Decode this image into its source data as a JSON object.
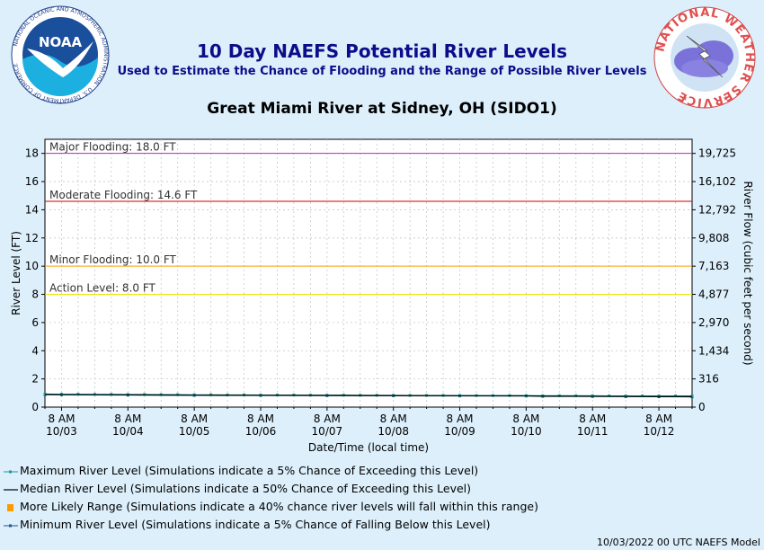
{
  "header": {
    "title": "10 Day NAEFS Potential River Levels",
    "subtitle": "Used to Estimate the Chance of Flooding and the Range of Possible River Levels",
    "station": "Great Miami River at Sidney, OH (SIDO1)"
  },
  "logos": {
    "noaa_text": "NOAA",
    "noaa_ring_text": "NATIONAL OCEANIC AND ATMOSPHERIC ADMINISTRATION · U.S. DEPARTMENT OF COMMERCE",
    "nws_ring_text": "NATIONAL WEATHER SERVICE"
  },
  "colors": {
    "background": "#dceffb",
    "title": "#0b0d8a",
    "major": "#b030b0",
    "moderate": "#cc0000",
    "minor": "#ff9900",
    "action": "#e6e600",
    "max_series": "#1a9a9a",
    "median_series": "#000000",
    "likely_range": "#ff9900",
    "min_series": "#1a5a8a"
  },
  "legend": [
    {
      "key": "max",
      "label": "Maximum River Level (Simulations indicate a 5% Chance of Exceeding this Level)"
    },
    {
      "key": "median",
      "label": "Median River Level (Simulations indicate a 50% Chance of Exceeding this Level)"
    },
    {
      "key": "likely",
      "label": "More Likely Range (Simulations indicate a 40% chance river levels will fall within this range)"
    },
    {
      "key": "min",
      "label": "Minimum River Level (Simulations indicate a 5% Chance of Falling Below this Level)"
    }
  ],
  "footer": "10/03/2022 00 UTC NAEFS Model",
  "chart_data": {
    "type": "line",
    "xlabel": "Date/Time (local time)",
    "ylabel": "River Level (FT)",
    "y2label": "River Flow (cubic feet per second)",
    "ylim": [
      0,
      19
    ],
    "yticks": [
      0,
      2,
      4,
      6,
      8,
      10,
      12,
      14,
      16,
      18
    ],
    "y2ticks": [
      {
        "stage": 0,
        "label": "0"
      },
      {
        "stage": 2,
        "label": "316"
      },
      {
        "stage": 4,
        "label": "1,434"
      },
      {
        "stage": 6,
        "label": "2,970"
      },
      {
        "stage": 8,
        "label": "4,877"
      },
      {
        "stage": 10,
        "label": "7,163"
      },
      {
        "stage": 12,
        "label": "9,808"
      },
      {
        "stage": 14,
        "label": "12,792"
      },
      {
        "stage": 16,
        "label": "16,102"
      },
      {
        "stage": 18,
        "label": "19,725"
      }
    ],
    "xticks": [
      {
        "time": "8 AM",
        "date": "10/03"
      },
      {
        "time": "8 AM",
        "date": "10/04"
      },
      {
        "time": "8 AM",
        "date": "10/05"
      },
      {
        "time": "8 AM",
        "date": "10/06"
      },
      {
        "time": "8 AM",
        "date": "10/07"
      },
      {
        "time": "8 AM",
        "date": "10/08"
      },
      {
        "time": "8 AM",
        "date": "10/09"
      },
      {
        "time": "8 AM",
        "date": "10/10"
      },
      {
        "time": "8 AM",
        "date": "10/11"
      },
      {
        "time": "8 AM",
        "date": "10/12"
      }
    ],
    "x_range_days": [
      -0.25,
      9.5
    ],
    "thresholds": [
      {
        "label": "Major Flooding: 18.0 FT",
        "value": 18.0,
        "color_key": "major"
      },
      {
        "label": "Moderate Flooding: 14.6 FT",
        "value": 14.6,
        "color_key": "moderate"
      },
      {
        "label": "Minor Flooding: 10.0 FT",
        "value": 10.0,
        "color_key": "minor"
      },
      {
        "label": "Action Level: 8.0 FT",
        "value": 8.0,
        "color_key": "action"
      }
    ],
    "series": {
      "max": {
        "x": [
          -0.25,
          0,
          0.25,
          0.5,
          0.75,
          1,
          1.25,
          1.5,
          1.75,
          2,
          2.25,
          2.5,
          2.75,
          3,
          3.25,
          3.5,
          3.75,
          4,
          4.25,
          4.5,
          4.75,
          5,
          5.25,
          5.5,
          5.75,
          6,
          6.25,
          6.5,
          6.75,
          7,
          7.25,
          7.5,
          7.75,
          8,
          8.25,
          8.5,
          8.75,
          9,
          9.25,
          9.5
        ],
        "y": [
          0.93,
          0.92,
          0.92,
          0.91,
          0.91,
          0.9,
          0.9,
          0.89,
          0.89,
          0.88,
          0.88,
          0.87,
          0.87,
          0.86,
          0.86,
          0.86,
          0.85,
          0.85,
          0.85,
          0.84,
          0.84,
          0.84,
          0.83,
          0.83,
          0.83,
          0.83,
          0.82,
          0.82,
          0.82,
          0.82,
          0.81,
          0.81,
          0.81,
          0.81,
          0.8,
          0.8,
          0.8,
          0.8,
          0.8,
          0.8
        ]
      },
      "median": {
        "x": [
          -0.25,
          0,
          1,
          2,
          3,
          4,
          5,
          6,
          7,
          7.25,
          8,
          8.5,
          9,
          9.5
        ],
        "y": [
          0.9,
          0.89,
          0.87,
          0.85,
          0.84,
          0.83,
          0.82,
          0.81,
          0.8,
          0.78,
          0.77,
          0.76,
          0.75,
          0.75
        ]
      },
      "min": {
        "x": [
          -0.25,
          0,
          1,
          2,
          3,
          4,
          5,
          6,
          7,
          7.25,
          8,
          8.5,
          9,
          9.5
        ],
        "y": [
          0.88,
          0.87,
          0.85,
          0.83,
          0.82,
          0.81,
          0.8,
          0.79,
          0.78,
          0.76,
          0.75,
          0.74,
          0.73,
          0.72
        ]
      }
    }
  }
}
